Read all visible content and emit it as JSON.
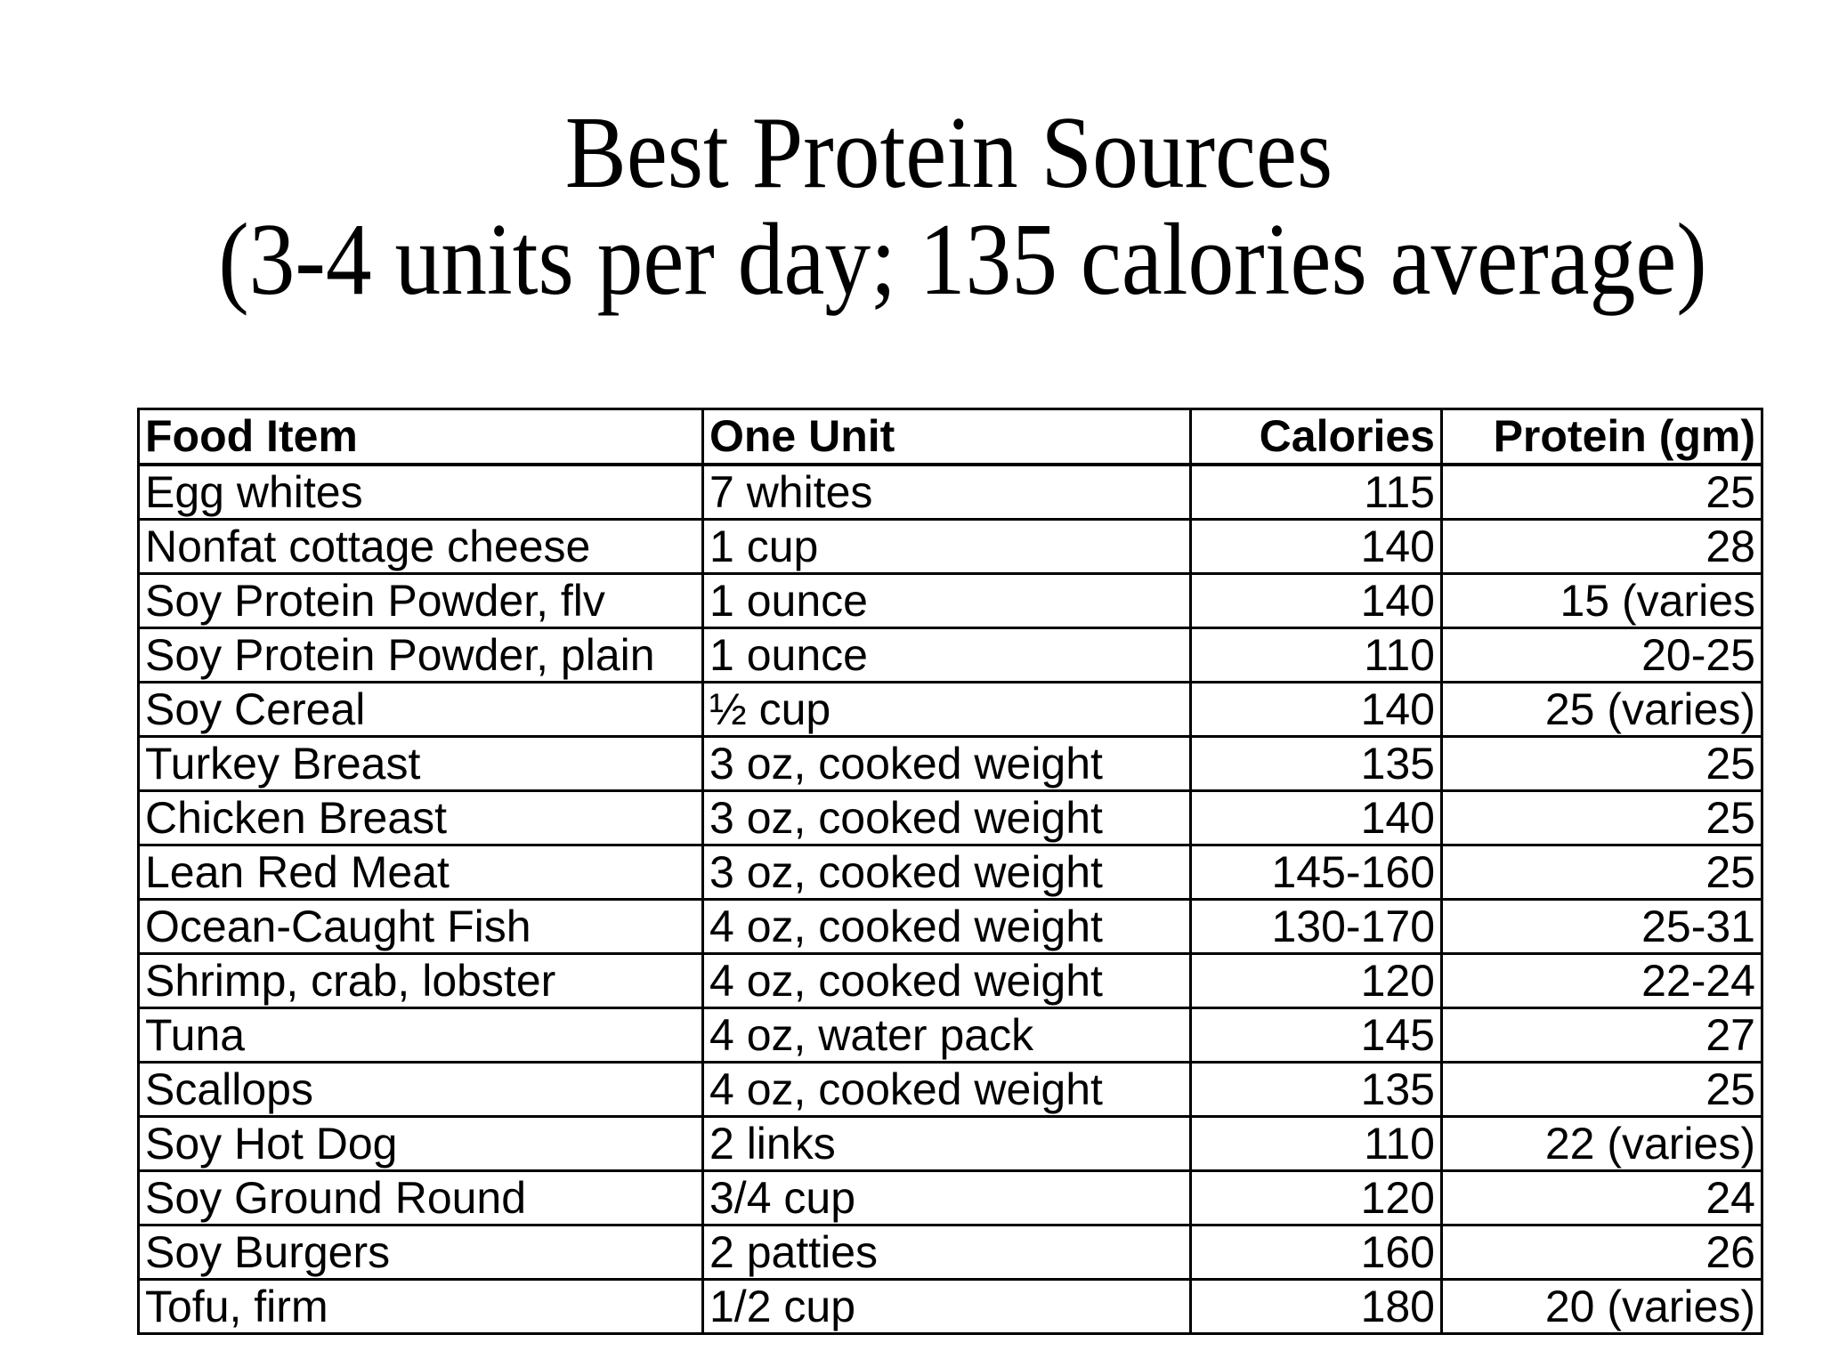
{
  "page": {
    "background_color": "#ffffff",
    "text_color": "#000000",
    "border_color": "#000000"
  },
  "title": {
    "line1": "Best Protein Sources",
    "line2": "(3-4 units per day; 135 calories average)"
  },
  "table": {
    "headers": [
      "Food Item",
      "One Unit",
      "Calories",
      "Protein (gm)"
    ],
    "rows": [
      [
        "Egg whites",
        "7 whites",
        "115",
        "25"
      ],
      [
        "Nonfat cottage cheese",
        "1 cup",
        "140",
        "28"
      ],
      [
        "Soy Protein Powder, flv",
        "1 ounce",
        "140",
        "15 (varies"
      ],
      [
        "Soy Protein Powder, plain",
        "1 ounce",
        "110",
        "20-25"
      ],
      [
        "Soy Cereal",
        "½ cup",
        "140",
        "25 (varies)"
      ],
      [
        "Turkey Breast",
        "3 oz, cooked weight",
        "135",
        "25"
      ],
      [
        "Chicken Breast",
        "3 oz, cooked weight",
        "140",
        "25"
      ],
      [
        "Lean Red Meat",
        "3 oz, cooked weight",
        "145-160",
        "25"
      ],
      [
        "Ocean-Caught Fish",
        "4 oz, cooked weight",
        "130-170",
        "25-31"
      ],
      [
        "Shrimp, crab, lobster",
        "4 oz, cooked weight",
        "120",
        "22-24"
      ],
      [
        "Tuna",
        "4 oz, water pack",
        "145",
        "27"
      ],
      [
        "Scallops",
        "4 oz, cooked weight",
        "135",
        "25"
      ],
      [
        "Soy Hot Dog",
        "2 links",
        "110",
        "22 (varies)"
      ],
      [
        "Soy Ground Round",
        "3/4 cup",
        "120",
        "24"
      ],
      [
        "Soy Burgers",
        "2 patties",
        "160",
        "26"
      ],
      [
        "Tofu, firm",
        "1/2 cup",
        "180",
        "20 (varies)"
      ]
    ],
    "cell_names": [
      "cell-food-item",
      "cell-one-unit",
      "cell-calories",
      "cell-protein"
    ]
  }
}
